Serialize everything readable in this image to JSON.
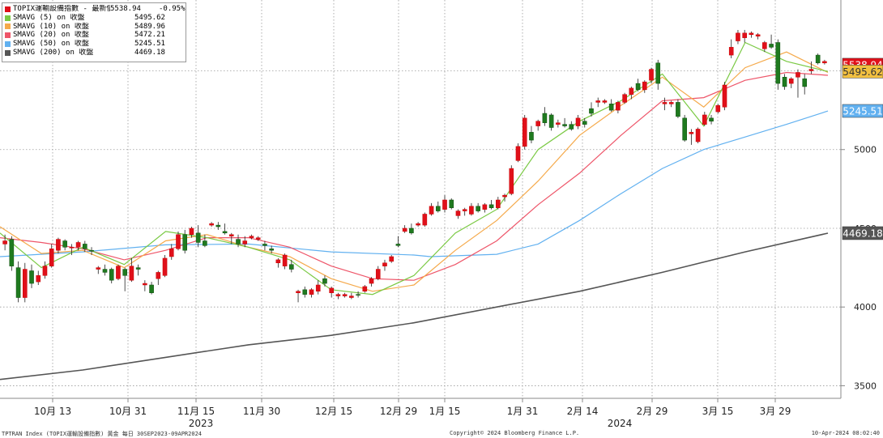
{
  "chart_data": {
    "type": "candlestick",
    "y_axis": {
      "position": "right",
      "ticks": [
        3500,
        4000,
        5000
      ],
      "partial_tick_label": "4500",
      "ylim": [
        3420,
        5950
      ]
    },
    "x_axis": {
      "tick_labels": [
        "10月 13",
        "10月 31",
        "11月 15",
        "11月 30",
        "12月 15",
        "12月 29",
        "1月 15",
        "1月 31",
        "2月 14",
        "2月 29",
        "3月 15",
        "3月 29"
      ],
      "year_labels": [
        "2023",
        "2024"
      ]
    },
    "legend": [
      {
        "name": "TOPIX運輸設備指數 - 最新價",
        "value": "5538.94",
        "change": "-0.95%",
        "color": "#e0101a"
      },
      {
        "name": "SMAVG (5)  on 收盤",
        "value": "5495.62",
        "color": "#7ac943"
      },
      {
        "name": "SMAVG (10)  on 收盤",
        "value": "5489.96",
        "color": "#f5a94a"
      },
      {
        "name": "SMAVG (20)  on 收盤",
        "value": "5472.21",
        "color": "#ee5569"
      },
      {
        "name": "SMAVG (50)  on 收盤",
        "value": "5245.51",
        "color": "#62b1f0"
      },
      {
        "name": "SMAVG (200)  on 收盤",
        "value": "4469.18",
        "color": "#555555"
      }
    ],
    "last_value_tags": [
      {
        "label": "5538.94",
        "value": 5538.94,
        "bg": "#e0101a",
        "fg": "#ffffff"
      },
      {
        "label": "5495.62",
        "value": 5495.62,
        "bg": "#f2c040",
        "fg": "#333333"
      },
      {
        "label": "5245.51",
        "value": 5245.51,
        "bg": "#62b1f0",
        "fg": "#ffffff"
      },
      {
        "label": "4469.18",
        "value": 4469.18,
        "bg": "#555555",
        "fg": "#ffffff"
      }
    ],
    "candles": [
      {
        "o": 4400,
        "h": 4460,
        "l": 4360,
        "c": 4420,
        "up": true
      },
      {
        "o": 4430,
        "h": 4450,
        "l": 4230,
        "c": 4260,
        "up": false
      },
      {
        "o": 4250,
        "h": 4290,
        "l": 4030,
        "c": 4060,
        "up": false
      },
      {
        "o": 4060,
        "h": 4280,
        "l": 4030,
        "c": 4240,
        "up": true
      },
      {
        "o": 4230,
        "h": 4270,
        "l": 4120,
        "c": 4150,
        "up": false
      },
      {
        "o": 4160,
        "h": 4230,
        "l": 4140,
        "c": 4200,
        "up": true
      },
      {
        "o": 4200,
        "h": 4290,
        "l": 4180,
        "c": 4260,
        "up": true
      },
      {
        "o": 4260,
        "h": 4400,
        "l": 4250,
        "c": 4370,
        "up": true
      },
      {
        "o": 4360,
        "h": 4440,
        "l": 4340,
        "c": 4430,
        "up": true
      },
      {
        "o": 4420,
        "h": 4430,
        "l": 4360,
        "c": 4380,
        "up": false
      },
      {
        "o": 4380,
        "h": 4400,
        "l": 4330,
        "c": 4380,
        "up": true
      },
      {
        "o": 4380,
        "h": 4420,
        "l": 4360,
        "c": 4410,
        "up": true
      },
      {
        "o": 4400,
        "h": 4420,
        "l": 4350,
        "c": 4370,
        "up": false
      },
      {
        "o": 4360,
        "h": 4380,
        "l": 4330,
        "c": 4355,
        "up": false
      },
      {
        "o": 4240,
        "h": 4260,
        "l": 4210,
        "c": 4250,
        "up": true
      },
      {
        "o": 4240,
        "h": 4270,
        "l": 4200,
        "c": 4220,
        "up": false
      },
      {
        "o": 4240,
        "h": 4250,
        "l": 4150,
        "c": 4170,
        "up": false
      },
      {
        "o": 4180,
        "h": 4270,
        "l": 4170,
        "c": 4260,
        "up": true
      },
      {
        "o": 4240,
        "h": 4250,
        "l": 4100,
        "c": 4200,
        "up": false
      },
      {
        "o": 4170,
        "h": 4310,
        "l": 4160,
        "c": 4260,
        "up": true
      },
      {
        "o": 4250,
        "h": 4270,
        "l": 4200,
        "c": 4240,
        "up": false
      },
      {
        "o": 4140,
        "h": 4170,
        "l": 4100,
        "c": 4150,
        "up": true
      },
      {
        "o": 4140,
        "h": 4160,
        "l": 4080,
        "c": 4090,
        "up": false
      },
      {
        "o": 4180,
        "h": 4230,
        "l": 4140,
        "c": 4220,
        "up": true
      },
      {
        "o": 4200,
        "h": 4330,
        "l": 4190,
        "c": 4310,
        "up": true
      },
      {
        "o": 4320,
        "h": 4400,
        "l": 4300,
        "c": 4370,
        "up": true
      },
      {
        "o": 4370,
        "h": 4480,
        "l": 4360,
        "c": 4460,
        "up": true
      },
      {
        "o": 4460,
        "h": 4490,
        "l": 4340,
        "c": 4360,
        "up": false
      },
      {
        "o": 4460,
        "h": 4510,
        "l": 4440,
        "c": 4500,
        "up": true
      },
      {
        "o": 4470,
        "h": 4520,
        "l": 4380,
        "c": 4410,
        "up": false
      },
      {
        "o": 4420,
        "h": 4460,
        "l": 4380,
        "c": 4390,
        "up": false
      },
      {
        "o": 4520,
        "h": 4540,
        "l": 4510,
        "c": 4530,
        "up": true
      },
      {
        "o": 4520,
        "h": 4540,
        "l": 4490,
        "c": 4510,
        "up": false
      },
      {
        "o": 4480,
        "h": 4530,
        "l": 4460,
        "c": 4470,
        "up": false
      },
      {
        "o": 4450,
        "h": 4470,
        "l": 4400,
        "c": 4460,
        "up": true
      },
      {
        "o": 4430,
        "h": 4460,
        "l": 4380,
        "c": 4400,
        "up": false
      },
      {
        "o": 4400,
        "h": 4450,
        "l": 4380,
        "c": 4420,
        "up": true
      },
      {
        "o": 4450,
        "h": 4460,
        "l": 4430,
        "c": 4440,
        "up": true
      },
      {
        "o": 4430,
        "h": 4450,
        "l": 4420,
        "c": 4440,
        "up": true
      },
      {
        "o": 4400,
        "h": 4420,
        "l": 4360,
        "c": 4390,
        "up": false
      },
      {
        "o": 4370,
        "h": 4390,
        "l": 4340,
        "c": 4360,
        "up": false
      },
      {
        "o": 4280,
        "h": 4310,
        "l": 4250,
        "c": 4300,
        "up": true
      },
      {
        "o": 4260,
        "h": 4340,
        "l": 4240,
        "c": 4330,
        "up": true
      },
      {
        "o": 4270,
        "h": 4300,
        "l": 4220,
        "c": 4240,
        "up": false
      },
      {
        "o": 4090,
        "h": 4110,
        "l": 4030,
        "c": 4100,
        "up": true
      },
      {
        "o": 4110,
        "h": 4130,
        "l": 4060,
        "c": 4080,
        "up": false
      },
      {
        "o": 4080,
        "h": 4120,
        "l": 4060,
        "c": 4110,
        "up": true
      },
      {
        "o": 4100,
        "h": 4170,
        "l": 4080,
        "c": 4140,
        "up": true
      },
      {
        "o": 4180,
        "h": 4200,
        "l": 4130,
        "c": 4150,
        "up": false
      },
      {
        "o": 4090,
        "h": 4130,
        "l": 4060,
        "c": 4120,
        "up": true
      },
      {
        "o": 4070,
        "h": 4090,
        "l": 4050,
        "c": 4080,
        "up": true
      },
      {
        "o": 4070,
        "h": 4090,
        "l": 4060,
        "c": 4080,
        "up": true
      },
      {
        "o": 4060,
        "h": 4090,
        "l": 4050,
        "c": 4070,
        "up": true
      },
      {
        "o": 4080,
        "h": 4100,
        "l": 4060,
        "c": 4075,
        "up": false
      },
      {
        "o": 4100,
        "h": 4140,
        "l": 4090,
        "c": 4130,
        "up": true
      },
      {
        "o": 4150,
        "h": 4190,
        "l": 4130,
        "c": 4180,
        "up": true
      },
      {
        "o": 4180,
        "h": 4260,
        "l": 4170,
        "c": 4240,
        "up": true
      },
      {
        "o": 4260,
        "h": 4300,
        "l": 4230,
        "c": 4280,
        "up": true
      },
      {
        "o": 4290,
        "h": 4330,
        "l": 4280,
        "c": 4320,
        "up": true
      },
      {
        "o": 4400,
        "h": 4450,
        "l": 4380,
        "c": 4390,
        "up": false
      },
      {
        "o": 4480,
        "h": 4520,
        "l": 4470,
        "c": 4500,
        "up": true
      },
      {
        "o": 4500,
        "h": 4530,
        "l": 4460,
        "c": 4470,
        "up": false
      },
      {
        "o": 4520,
        "h": 4540,
        "l": 4510,
        "c": 4530,
        "up": true
      },
      {
        "o": 4520,
        "h": 4600,
        "l": 4510,
        "c": 4590,
        "up": true
      },
      {
        "o": 4590,
        "h": 4660,
        "l": 4580,
        "c": 4640,
        "up": true
      },
      {
        "o": 4640,
        "h": 4670,
        "l": 4600,
        "c": 4610,
        "up": false
      },
      {
        "o": 4620,
        "h": 4710,
        "l": 4600,
        "c": 4680,
        "up": true
      },
      {
        "o": 4680,
        "h": 4690,
        "l": 4620,
        "c": 4630,
        "up": false
      },
      {
        "o": 4580,
        "h": 4620,
        "l": 4560,
        "c": 4610,
        "up": true
      },
      {
        "o": 4610,
        "h": 4630,
        "l": 4580,
        "c": 4620,
        "up": true
      },
      {
        "o": 4590,
        "h": 4660,
        "l": 4580,
        "c": 4640,
        "up": true
      },
      {
        "o": 4640,
        "h": 4660,
        "l": 4600,
        "c": 4610,
        "up": false
      },
      {
        "o": 4620,
        "h": 4660,
        "l": 4600,
        "c": 4650,
        "up": true
      },
      {
        "o": 4650,
        "h": 4680,
        "l": 4620,
        "c": 4630,
        "up": false
      },
      {
        "o": 4630,
        "h": 4700,
        "l": 4620,
        "c": 4680,
        "up": true
      },
      {
        "o": 4700,
        "h": 4720,
        "l": 4670,
        "c": 4710,
        "up": true
      },
      {
        "o": 4720,
        "h": 4900,
        "l": 4710,
        "c": 4880,
        "up": true
      },
      {
        "o": 4930,
        "h": 5040,
        "l": 4920,
        "c": 5020,
        "up": true
      },
      {
        "o": 5020,
        "h": 5220,
        "l": 5000,
        "c": 5200,
        "up": true
      },
      {
        "o": 5110,
        "h": 5150,
        "l": 5040,
        "c": 5060,
        "up": false
      },
      {
        "o": 5150,
        "h": 5190,
        "l": 5120,
        "c": 5180,
        "up": true
      },
      {
        "o": 5230,
        "h": 5270,
        "l": 5150,
        "c": 5170,
        "up": false
      },
      {
        "o": 5220,
        "h": 5230,
        "l": 5120,
        "c": 5140,
        "up": false
      },
      {
        "o": 5160,
        "h": 5190,
        "l": 5140,
        "c": 5170,
        "up": true
      },
      {
        "o": 5160,
        "h": 5200,
        "l": 5140,
        "c": 5150,
        "up": false
      },
      {
        "o": 5160,
        "h": 5180,
        "l": 5120,
        "c": 5130,
        "up": false
      },
      {
        "o": 5150,
        "h": 5220,
        "l": 5130,
        "c": 5200,
        "up": true
      },
      {
        "o": 5180,
        "h": 5200,
        "l": 5140,
        "c": 5160,
        "up": false
      },
      {
        "o": 5260,
        "h": 5300,
        "l": 5210,
        "c": 5230,
        "up": false
      },
      {
        "o": 5300,
        "h": 5330,
        "l": 5270,
        "c": 5310,
        "up": true
      },
      {
        "o": 5300,
        "h": 5320,
        "l": 5290,
        "c": 5310,
        "up": true
      },
      {
        "o": 5290,
        "h": 5320,
        "l": 5240,
        "c": 5250,
        "up": false
      },
      {
        "o": 5250,
        "h": 5310,
        "l": 5230,
        "c": 5300,
        "up": true
      },
      {
        "o": 5300,
        "h": 5360,
        "l": 5290,
        "c": 5350,
        "up": true
      },
      {
        "o": 5350,
        "h": 5400,
        "l": 5320,
        "c": 5390,
        "up": true
      },
      {
        "o": 5420,
        "h": 5450,
        "l": 5370,
        "c": 5380,
        "up": false
      },
      {
        "o": 5380,
        "h": 5440,
        "l": 5360,
        "c": 5430,
        "up": true
      },
      {
        "o": 5440,
        "h": 5520,
        "l": 5420,
        "c": 5510,
        "up": true
      },
      {
        "o": 5550,
        "h": 5570,
        "l": 5380,
        "c": 5420,
        "up": false
      },
      {
        "o": 5290,
        "h": 5330,
        "l": 5250,
        "c": 5300,
        "up": true
      },
      {
        "o": 5290,
        "h": 5310,
        "l": 5270,
        "c": 5300,
        "up": true
      },
      {
        "o": 5300,
        "h": 5320,
        "l": 5200,
        "c": 5210,
        "up": false
      },
      {
        "o": 5200,
        "h": 5220,
        "l": 5050,
        "c": 5060,
        "up": false
      },
      {
        "o": 5100,
        "h": 5130,
        "l": 5030,
        "c": 5110,
        "up": true
      },
      {
        "o": 5050,
        "h": 5140,
        "l": 5040,
        "c": 5130,
        "up": true
      },
      {
        "o": 5160,
        "h": 5240,
        "l": 5150,
        "c": 5220,
        "up": true
      },
      {
        "o": 5200,
        "h": 5220,
        "l": 5160,
        "c": 5180,
        "up": false
      },
      {
        "o": 5240,
        "h": 5290,
        "l": 5230,
        "c": 5280,
        "up": true
      },
      {
        "o": 5270,
        "h": 5430,
        "l": 5250,
        "c": 5410,
        "up": true
      },
      {
        "o": 5650,
        "h": 5700,
        "l": 5580,
        "c": 5600,
        "up": true
      },
      {
        "o": 5690,
        "h": 5760,
        "l": 5670,
        "c": 5740,
        "up": true
      },
      {
        "o": 5710,
        "h": 5760,
        "l": 5680,
        "c": 5740,
        "up": true
      },
      {
        "o": 5730,
        "h": 5750,
        "l": 5710,
        "c": 5740,
        "up": true
      },
      {
        "o": 5720,
        "h": 5740,
        "l": 5700,
        "c": 5730,
        "up": true
      },
      {
        "o": 5640,
        "h": 5690,
        "l": 5620,
        "c": 5680,
        "up": true
      },
      {
        "o": 5670,
        "h": 5730,
        "l": 5640,
        "c": 5650,
        "up": false
      },
      {
        "o": 5680,
        "h": 5700,
        "l": 5380,
        "c": 5420,
        "up": false
      },
      {
        "o": 5460,
        "h": 5480,
        "l": 5380,
        "c": 5400,
        "up": false
      },
      {
        "o": 5420,
        "h": 5460,
        "l": 5390,
        "c": 5450,
        "up": true
      },
      {
        "o": 5460,
        "h": 5510,
        "l": 5330,
        "c": 5490,
        "up": true
      },
      {
        "o": 5450,
        "h": 5480,
        "l": 5350,
        "c": 5400,
        "up": false
      },
      {
        "o": 5510,
        "h": 5560,
        "l": 5480,
        "c": 5500,
        "up": true
      },
      {
        "o": 5600,
        "h": 5610,
        "l": 5540,
        "c": 5550,
        "up": false
      },
      {
        "o": 5560,
        "h": 5570,
        "l": 5540,
        "c": 5550,
        "up": true
      }
    ],
    "series_lines": [
      {
        "name": "SMAVG (200)  on 收盤",
        "color": "#555555",
        "x": [
          0,
          0.1,
          0.2,
          0.3,
          0.4,
          0.5,
          0.6,
          0.7,
          0.8,
          0.9,
          1
        ],
        "values": [
          3540,
          3600,
          3680,
          3760,
          3820,
          3900,
          4000,
          4100,
          4220,
          4350,
          4469
        ]
      },
      {
        "name": "SMAVG (50)  on 收盤",
        "color": "#62b1f0",
        "x": [
          0,
          0.1,
          0.2,
          0.3,
          0.4,
          0.5,
          0.52,
          0.6,
          0.65,
          0.7,
          0.75,
          0.8,
          0.85,
          0.9,
          0.95,
          1
        ],
        "values": [
          4320,
          4350,
          4395,
          4400,
          4350,
          4330,
          4320,
          4335,
          4400,
          4550,
          4720,
          4880,
          5000,
          5080,
          5160,
          5245
        ]
      },
      {
        "name": "SMAVG (20)  on 收盤",
        "color": "#ee5569",
        "x": [
          0,
          0.05,
          0.1,
          0.15,
          0.2,
          0.25,
          0.3,
          0.35,
          0.4,
          0.45,
          0.5,
          0.55,
          0.6,
          0.65,
          0.7,
          0.75,
          0.8,
          0.85,
          0.9,
          0.95,
          1
        ],
        "values": [
          4440,
          4410,
          4370,
          4300,
          4360,
          4440,
          4440,
          4380,
          4260,
          4180,
          4170,
          4270,
          4420,
          4650,
          4850,
          5090,
          5310,
          5330,
          5440,
          5490,
          5472
        ]
      },
      {
        "name": "SMAVG (10)  on 收盤",
        "color": "#f5a94a",
        "x": [
          0,
          0.05,
          0.1,
          0.15,
          0.2,
          0.25,
          0.3,
          0.35,
          0.4,
          0.45,
          0.5,
          0.55,
          0.6,
          0.65,
          0.7,
          0.75,
          0.8,
          0.85,
          0.9,
          0.95,
          1
        ],
        "values": [
          4510,
          4340,
          4360,
          4250,
          4420,
          4460,
          4380,
          4320,
          4180,
          4100,
          4140,
          4360,
          4550,
          4800,
          5090,
          5280,
          5460,
          5270,
          5520,
          5620,
          5490
        ]
      },
      {
        "name": "SMAVG (5)  on 收盤",
        "color": "#7ac943",
        "x": [
          0,
          0.05,
          0.1,
          0.15,
          0.2,
          0.25,
          0.3,
          0.35,
          0.4,
          0.45,
          0.5,
          0.55,
          0.6,
          0.65,
          0.7,
          0.75,
          0.8,
          0.85,
          0.9,
          0.95,
          1
        ],
        "values": [
          4470,
          4250,
          4380,
          4270,
          4480,
          4440,
          4380,
          4300,
          4110,
          4080,
          4200,
          4470,
          4620,
          5000,
          5180,
          5310,
          5480,
          5150,
          5680,
          5560,
          5496
        ]
      }
    ]
  },
  "footer": {
    "left": "TPTRAN Index (TOPIX運輸設備指數) 黃金  每日 30SEP2023-09APR2024",
    "center": "Copyright© 2024 Bloomberg Finance L.P.",
    "right": "10-Apr-2024 08:02:40"
  }
}
